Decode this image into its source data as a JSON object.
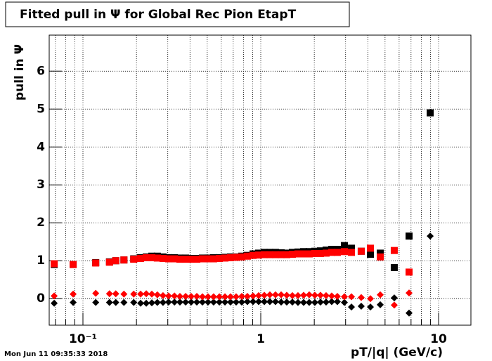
{
  "chart_data": {
    "type": "scatter",
    "title": "Fitted pull in  Ψ  for Global Rec Pion EtapT",
    "x_label": "pT/|q| (GeV/c)",
    "y_label": "pull in  Ψ",
    "timestamp": "Mon Jun 11 09:35:33 2018",
    "x_log": true,
    "grid": true,
    "xlim": [
      0.0646,
      15.2
    ],
    "ylim": [
      -0.7,
      6.95
    ],
    "xticks": [
      {
        "value": 0.1,
        "label": "10⁻¹"
      },
      1,
      10
    ],
    "xminorticks": [
      0.07,
      0.08,
      0.09,
      0.2,
      0.3,
      0.4,
      0.5,
      0.6,
      0.7,
      0.8,
      0.9,
      2,
      3,
      4,
      5,
      6,
      7,
      8,
      9
    ],
    "yticks": [
      0,
      1,
      2,
      3,
      4,
      5,
      6
    ],
    "x": [
      0.0689,
      0.0881,
      0.118,
      0.141,
      0.153,
      0.17,
      0.193,
      0.211,
      0.227,
      0.244,
      0.262,
      0.282,
      0.303,
      0.327,
      0.351,
      0.378,
      0.406,
      0.437,
      0.47,
      0.505,
      0.543,
      0.585,
      0.629,
      0.676,
      0.727,
      0.782,
      0.841,
      0.905,
      0.973,
      1.047,
      1.125,
      1.21,
      1.302,
      1.4,
      1.506,
      1.619,
      1.742,
      1.873,
      2.014,
      2.167,
      2.33,
      2.506,
      2.696,
      2.954,
      3.236,
      3.673,
      4.137,
      4.698,
      5.634,
      6.823,
      8.97
    ],
    "series": [
      {
        "color": "#000000",
        "marker": "square",
        "values": [
          0.9,
          0.9,
          0.95,
          0.97,
          1.0,
          1.02,
          1.05,
          1.08,
          1.1,
          1.12,
          1.12,
          1.1,
          1.08,
          1.08,
          1.07,
          1.07,
          1.06,
          1.06,
          1.07,
          1.07,
          1.08,
          1.08,
          1.09,
          1.1,
          1.1,
          1.12,
          1.14,
          1.18,
          1.2,
          1.22,
          1.22,
          1.22,
          1.21,
          1.2,
          1.22,
          1.23,
          1.24,
          1.24,
          1.25,
          1.26,
          1.28,
          1.3,
          1.3,
          1.4,
          1.33,
          1.25,
          1.17,
          1.2,
          0.82,
          1.65,
          4.9
        ]
      },
      {
        "color": "#ff0000",
        "marker": "square",
        "values": [
          0.92,
          0.9,
          0.94,
          0.96,
          1.0,
          1.02,
          1.04,
          1.06,
          1.08,
          1.08,
          1.07,
          1.06,
          1.05,
          1.05,
          1.04,
          1.04,
          1.04,
          1.04,
          1.05,
          1.05,
          1.05,
          1.06,
          1.07,
          1.08,
          1.09,
          1.1,
          1.12,
          1.14,
          1.15,
          1.16,
          1.16,
          1.16,
          1.16,
          1.16,
          1.17,
          1.18,
          1.18,
          1.18,
          1.19,
          1.19,
          1.2,
          1.22,
          1.22,
          1.24,
          1.22,
          1.25,
          1.33,
          1.1,
          1.27,
          0.7,
          null
        ]
      },
      {
        "color": "#000000",
        "marker": "diamond",
        "values": [
          -0.12,
          -0.1,
          -0.1,
          -0.1,
          -0.1,
          -0.1,
          -0.1,
          -0.12,
          -0.12,
          -0.11,
          -0.1,
          -0.1,
          -0.09,
          -0.09,
          -0.09,
          -0.09,
          -0.09,
          -0.09,
          -0.09,
          -0.09,
          -0.09,
          -0.09,
          -0.09,
          -0.09,
          -0.09,
          -0.09,
          -0.08,
          -0.08,
          -0.08,
          -0.08,
          -0.08,
          -0.08,
          -0.09,
          -0.09,
          -0.09,
          -0.1,
          -0.1,
          -0.1,
          -0.1,
          -0.09,
          -0.09,
          -0.08,
          -0.08,
          -0.1,
          -0.22,
          -0.2,
          -0.22,
          -0.16,
          0.02,
          -0.38,
          1.65
        ]
      },
      {
        "color": "#ff0000",
        "marker": "diamond",
        "values": [
          0.07,
          0.12,
          0.14,
          0.13,
          0.13,
          0.12,
          0.12,
          0.12,
          0.13,
          0.12,
          0.1,
          0.08,
          0.07,
          0.07,
          0.06,
          0.06,
          0.06,
          0.06,
          0.05,
          0.05,
          0.05,
          0.05,
          0.05,
          0.05,
          0.05,
          0.06,
          0.06,
          0.07,
          0.08,
          0.09,
          0.1,
          0.1,
          0.1,
          0.09,
          0.08,
          0.08,
          0.09,
          0.1,
          0.09,
          0.09,
          0.08,
          0.07,
          0.06,
          0.05,
          0.05,
          0.03,
          0.0,
          0.1,
          -0.17,
          0.15,
          null
        ]
      }
    ]
  }
}
